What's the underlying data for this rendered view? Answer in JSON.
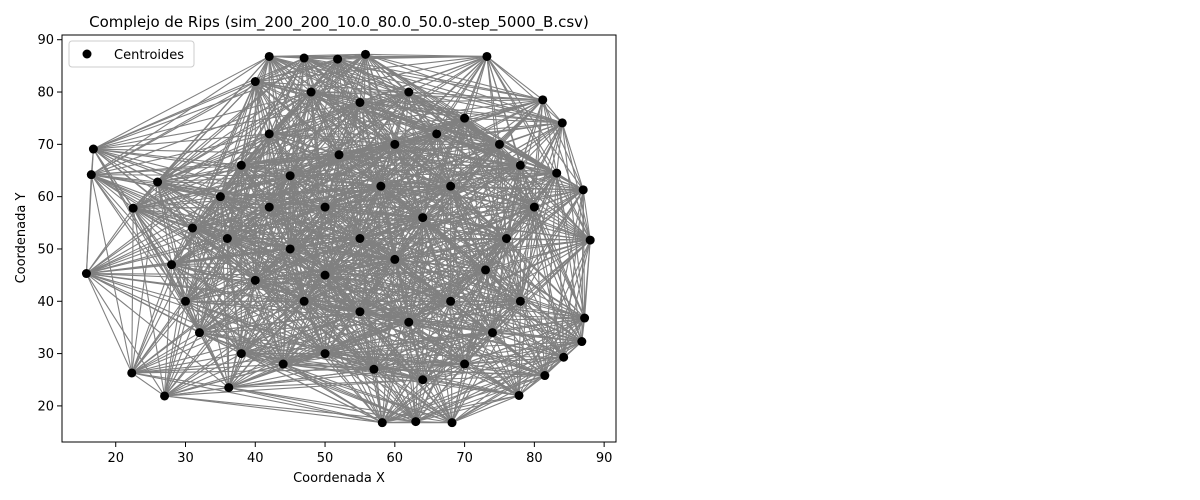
{
  "chart_data": {
    "type": "scatter",
    "title": "Complejo de Rips (sim_200_200_10.0_80.0_50.0-step_5000_B.csv)",
    "xlabel": "Coordenada X",
    "ylabel": "Coordenada Y",
    "xlim": [
      12.3,
      91.7
    ],
    "ylim": [
      13.1,
      90.9
    ],
    "xticks": [
      20,
      30,
      40,
      50,
      60,
      70,
      80,
      90
    ],
    "yticks": [
      20,
      30,
      40,
      50,
      60,
      70,
      80,
      90
    ],
    "grid": false,
    "legend": {
      "placement": "top-left",
      "entries": [
        "Centroides"
      ]
    },
    "colors": {
      "points": "#000000",
      "edges": "#808080",
      "frame": "#000000"
    },
    "series": [
      {
        "name": "Centroides",
        "points": [
          [
            42.0,
            86.8
          ],
          [
            47.0,
            86.5
          ],
          [
            51.8,
            86.3
          ],
          [
            55.8,
            87.2
          ],
          [
            73.2,
            86.8
          ],
          [
            81.2,
            78.5
          ],
          [
            84.0,
            74.1
          ],
          [
            16.8,
            69.1
          ],
          [
            16.5,
            64.2
          ],
          [
            26.0,
            62.8
          ],
          [
            83.2,
            64.5
          ],
          [
            87.0,
            61.3
          ],
          [
            22.5,
            57.8
          ],
          [
            88.0,
            51.7
          ],
          [
            15.8,
            45.3
          ],
          [
            87.2,
            36.8
          ],
          [
            86.8,
            32.3
          ],
          [
            84.2,
            29.3
          ],
          [
            22.3,
            26.3
          ],
          [
            81.5,
            25.8
          ],
          [
            27.0,
            21.9
          ],
          [
            36.2,
            23.5
          ],
          [
            77.8,
            22.0
          ],
          [
            58.2,
            16.8
          ],
          [
            63.0,
            17.0
          ],
          [
            68.2,
            16.8
          ],
          [
            40.0,
            82.0
          ],
          [
            48.0,
            80.0
          ],
          [
            55.0,
            78.0
          ],
          [
            62.0,
            80.0
          ],
          [
            66.0,
            72.0
          ],
          [
            70.0,
            75.0
          ],
          [
            75.0,
            70.0
          ],
          [
            78.0,
            66.0
          ],
          [
            80.0,
            58.0
          ],
          [
            76.0,
            52.0
          ],
          [
            73.0,
            46.0
          ],
          [
            78.0,
            40.0
          ],
          [
            74.0,
            34.0
          ],
          [
            70.0,
            28.0
          ],
          [
            64.0,
            25.0
          ],
          [
            57.0,
            27.0
          ],
          [
            50.0,
            30.0
          ],
          [
            44.0,
            28.0
          ],
          [
            38.0,
            30.0
          ],
          [
            32.0,
            34.0
          ],
          [
            30.0,
            40.0
          ],
          [
            28.0,
            47.0
          ],
          [
            31.0,
            54.0
          ],
          [
            35.0,
            60.0
          ],
          [
            38.0,
            66.0
          ],
          [
            42.0,
            72.0
          ],
          [
            45.0,
            64.0
          ],
          [
            50.0,
            58.0
          ],
          [
            55.0,
            52.0
          ],
          [
            60.0,
            48.0
          ],
          [
            64.0,
            56.0
          ],
          [
            58.0,
            62.0
          ],
          [
            52.0,
            68.0
          ],
          [
            60.0,
            70.0
          ],
          [
            45.0,
            50.0
          ],
          [
            40.0,
            44.0
          ],
          [
            47.0,
            40.0
          ],
          [
            55.0,
            38.0
          ],
          [
            62.0,
            36.0
          ],
          [
            68.0,
            40.0
          ],
          [
            68.0,
            62.0
          ],
          [
            36.0,
            52.0
          ],
          [
            42.0,
            58.0
          ],
          [
            50.0,
            45.0
          ]
        ]
      }
    ]
  }
}
